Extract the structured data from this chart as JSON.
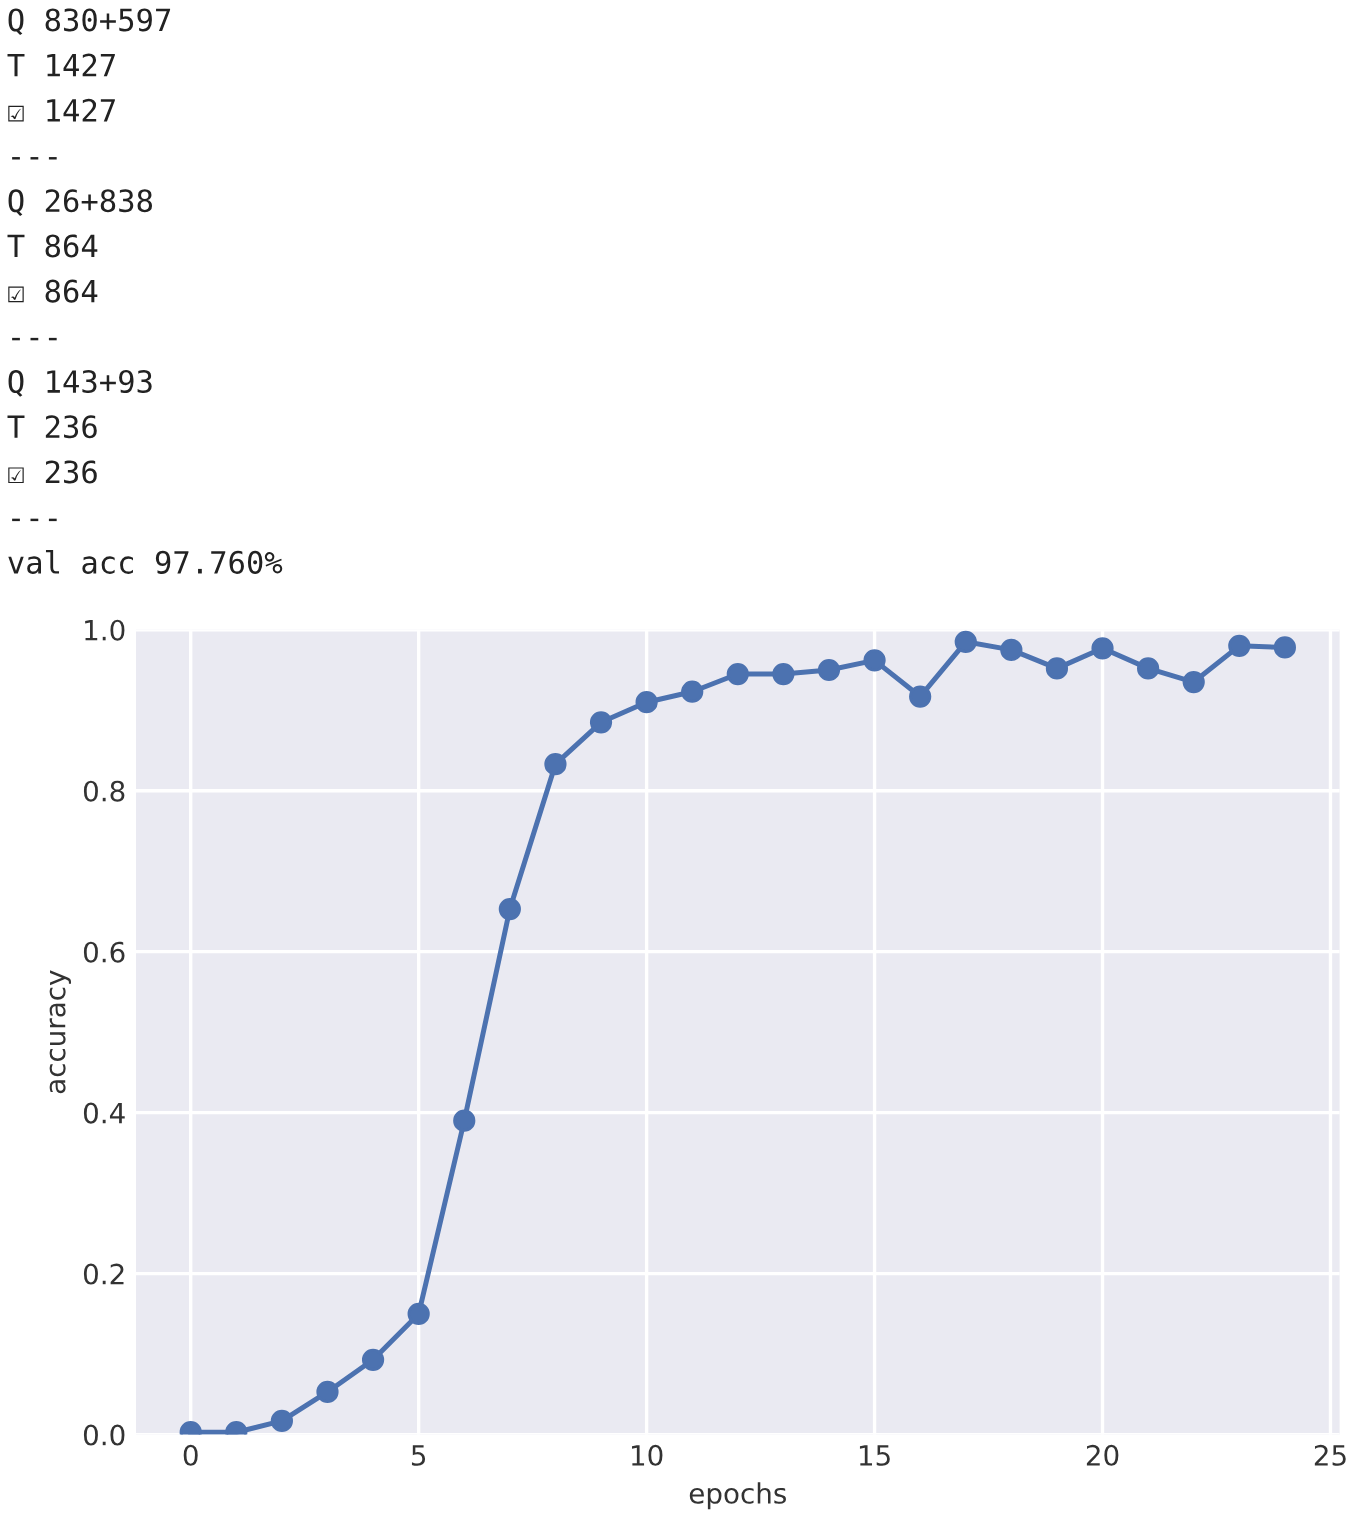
{
  "chart_data": {
    "type": "line",
    "xlabel": "epochs",
    "ylabel": "accuracy",
    "annotations": [
      "Q 830+597",
      "T 1427",
      "☑ 1427",
      "---",
      "Q 26+838",
      "T 864",
      "☑ 864",
      "---",
      "Q 143+93",
      "T 236",
      "☑ 236",
      "---",
      "val acc 97.760%"
    ],
    "x": [
      0,
      1,
      2,
      3,
      4,
      5,
      6,
      7,
      8,
      9,
      10,
      11,
      12,
      13,
      14,
      15,
      16,
      17,
      18,
      19,
      20,
      21,
      22,
      23,
      24
    ],
    "series": [
      {
        "color": "#4c72b0",
        "values": [
          0.003,
          0.003,
          0.017,
          0.053,
          0.093,
          0.15,
          0.39,
          0.653,
          0.833,
          0.885,
          0.91,
          0.923,
          0.945,
          0.945,
          0.95,
          0.962,
          0.917,
          0.985,
          0.975,
          0.952,
          0.977,
          0.952,
          0.935,
          0.98,
          0.978
        ]
      }
    ],
    "xlim": [
      -1.2,
      25.2
    ],
    "ylim": [
      0,
      1
    ],
    "xticks": [
      0,
      5,
      10,
      15,
      20,
      25
    ],
    "yticks": [
      {
        "value": 0,
        "label": "0.0"
      },
      {
        "value": 0.2,
        "label": "0.2"
      },
      {
        "value": 0.4,
        "label": "0.4"
      },
      {
        "value": 0.6,
        "label": "0.6"
      },
      {
        "value": 0.8,
        "label": "0.8"
      },
      {
        "value": 1.0,
        "label": "1.0"
      }
    ],
    "grid": true,
    "marker": "circle",
    "line_style": "solid"
  }
}
